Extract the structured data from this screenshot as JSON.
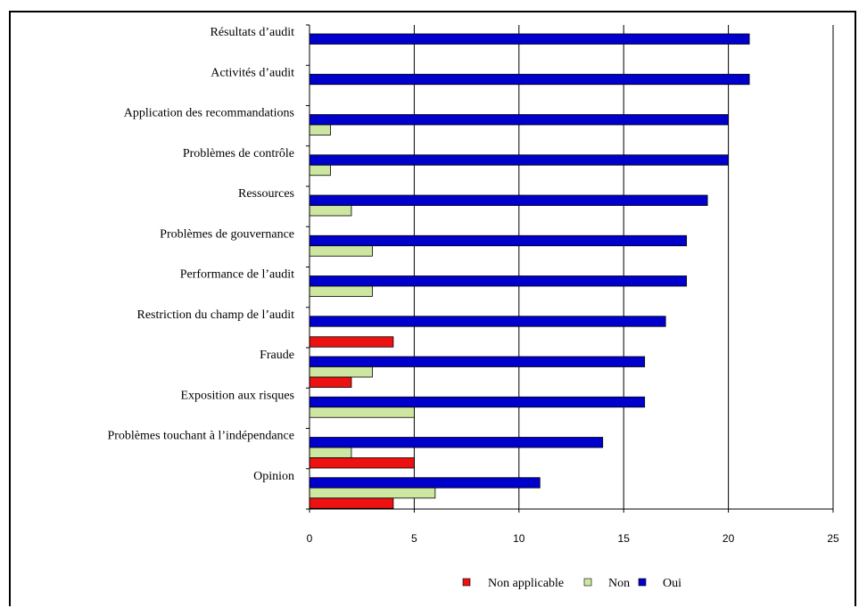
{
  "chart_data": {
    "type": "bar",
    "orientation": "horizontal",
    "title": "",
    "xlabel": "",
    "ylabel": "",
    "xlim": [
      0,
      25
    ],
    "xticks": [
      0,
      5,
      10,
      15,
      20,
      25
    ],
    "grid": "vertical",
    "legend_position": "bottom",
    "categories": [
      "Résultats d’audit",
      "Activités d’audit",
      "Application des recommandations",
      "Problèmes de contrôle",
      "Ressources",
      "Problèmes de gouvernance",
      "Performance de l’audit",
      "Restriction du champ de l’audit",
      "Fraude",
      "Exposition aux risques",
      "Problèmes touchant à l’indépendance",
      "Opinion"
    ],
    "series": [
      {
        "name": "Oui",
        "color": "#0000cc",
        "values": [
          21,
          21,
          20,
          20,
          19,
          18,
          18,
          17,
          16,
          16,
          14,
          11
        ]
      },
      {
        "name": "Non",
        "color": "#cde6a0",
        "values": [
          0,
          0,
          1,
          1,
          2,
          3,
          3,
          0,
          3,
          5,
          2,
          6
        ]
      },
      {
        "name": "Non applicable",
        "color": "#ee1111",
        "values": [
          0,
          0,
          0,
          0,
          0,
          0,
          0,
          4,
          2,
          0,
          5,
          4
        ]
      }
    ],
    "legend_order": [
      "Non applicable",
      "Non",
      "Oui"
    ]
  }
}
